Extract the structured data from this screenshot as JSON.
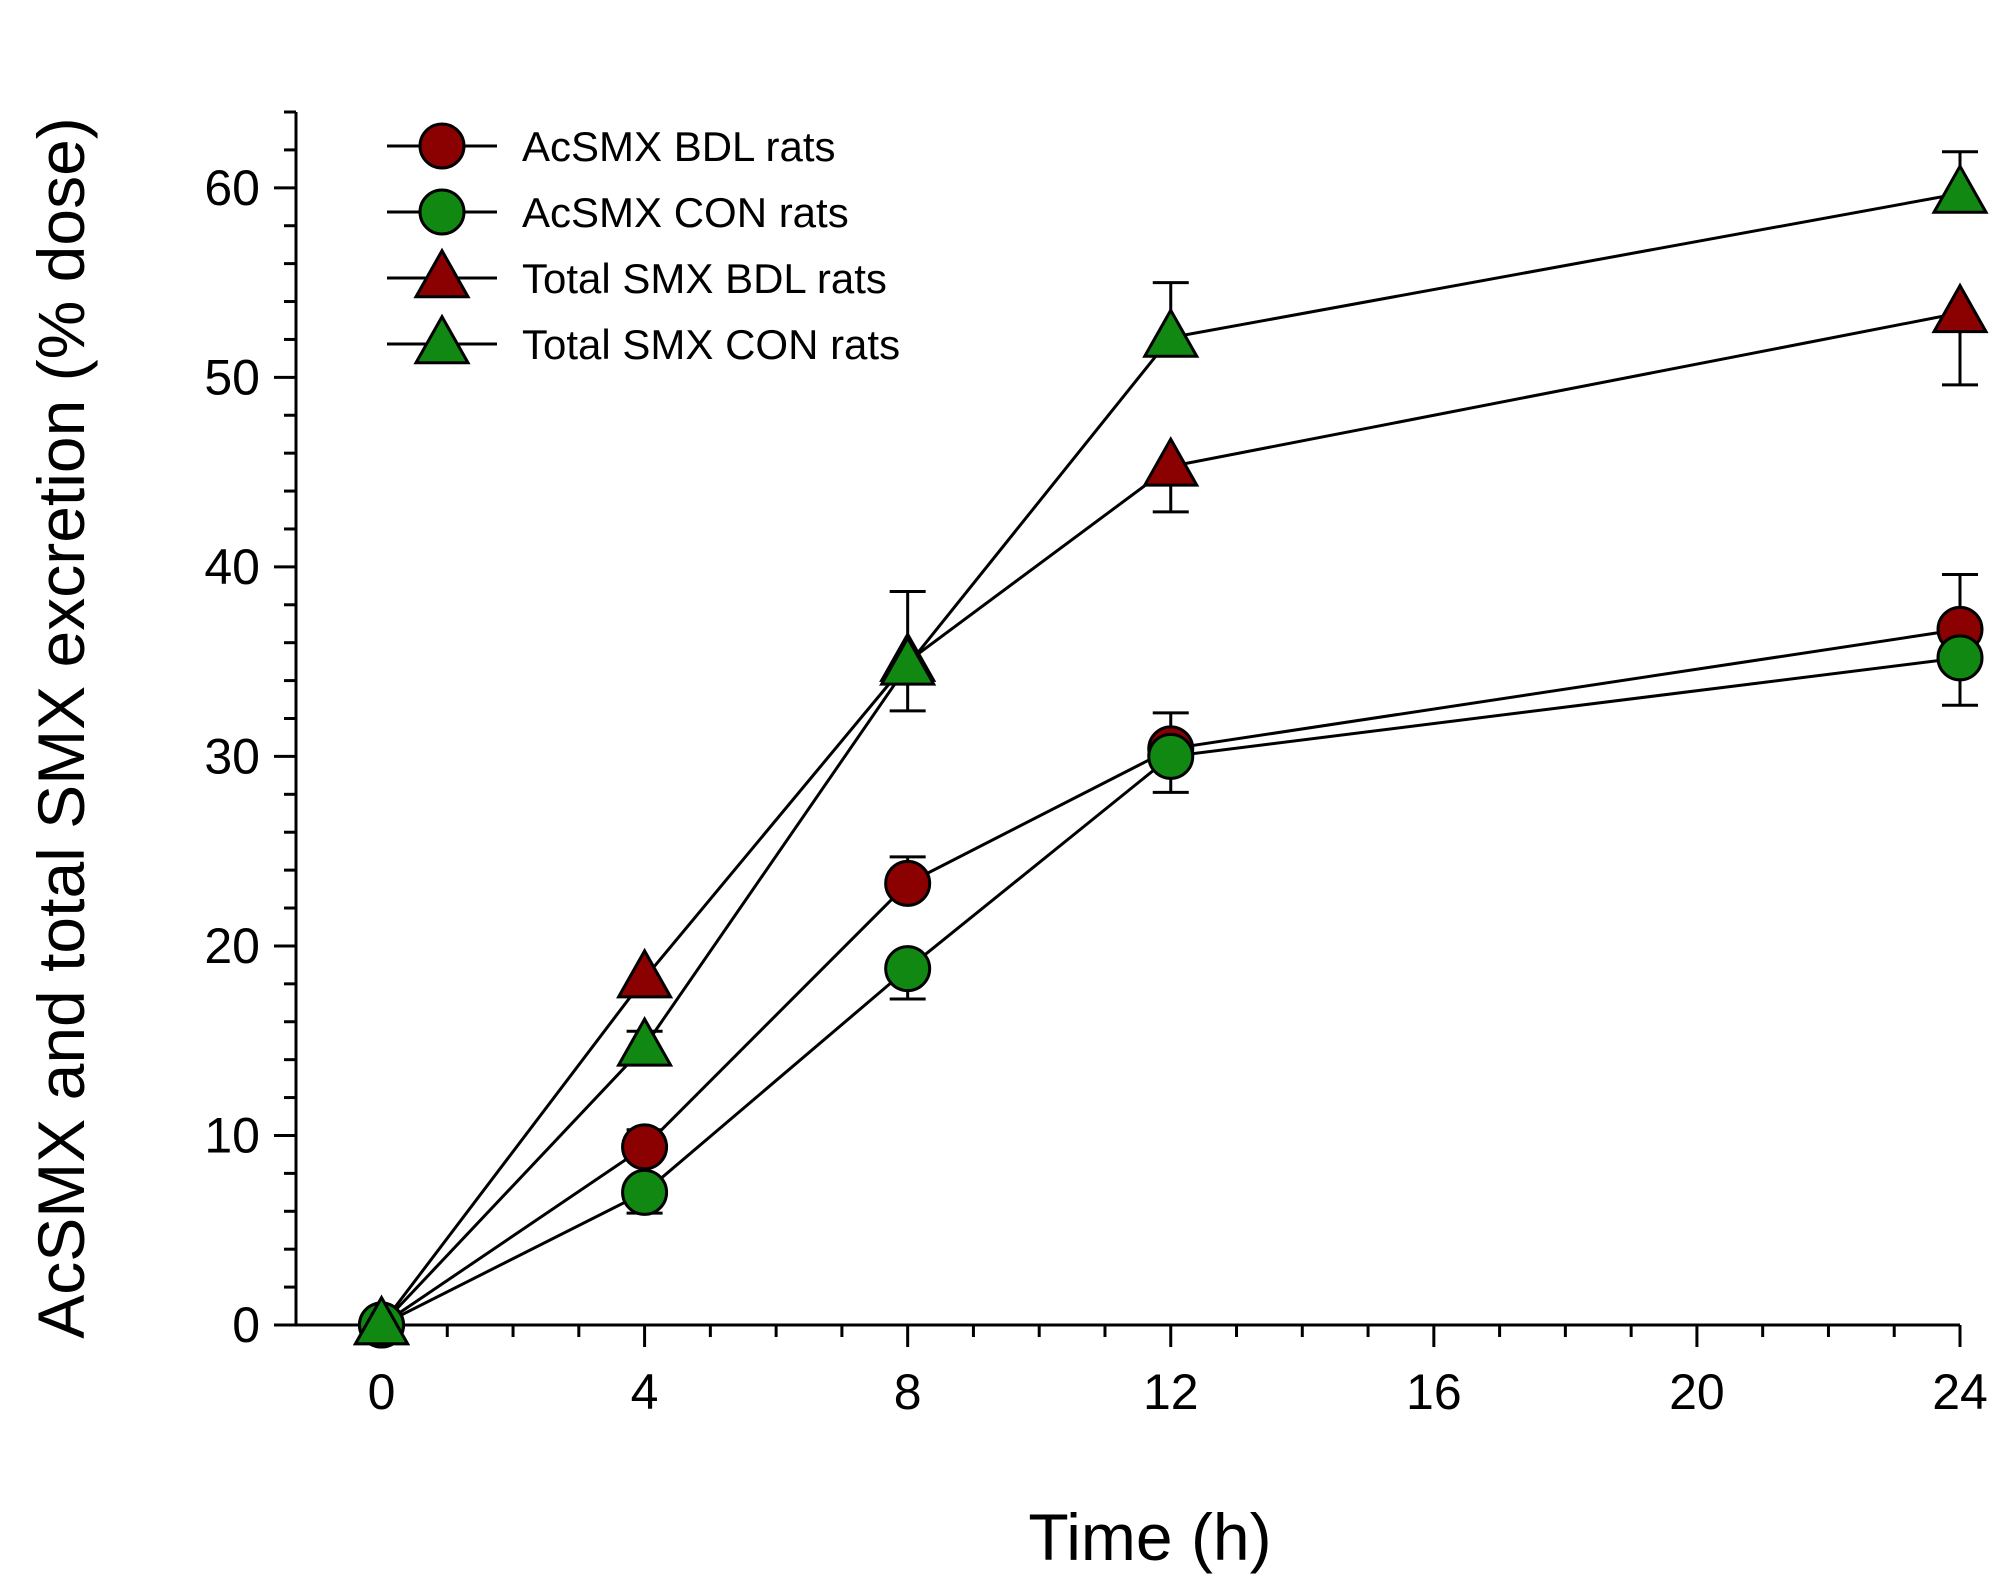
{
  "chart_data": {
    "type": "line",
    "title": "",
    "xlabel": "Time (h)",
    "ylabel": "AcSMX and total SMX excretion (% dose)",
    "xlim": [
      -1.3,
      24
    ],
    "ylim": [
      0,
      64
    ],
    "x_ticks": [
      0,
      4,
      8,
      12,
      16,
      20,
      24
    ],
    "x_tick_labels": [
      "0",
      "4",
      "8",
      "12",
      "16",
      "20",
      "24"
    ],
    "x_minor_step": 1,
    "y_ticks": [
      0,
      10,
      20,
      30,
      40,
      50,
      60
    ],
    "y_tick_labels": [
      "0",
      "10",
      "20",
      "30",
      "40",
      "50",
      "60"
    ],
    "y_minor_step": 2,
    "grid": false,
    "legend_position": "top-left",
    "series": [
      {
        "name": "AcSMX BDL rats",
        "marker": "circle",
        "color": "#8b0000",
        "x": [
          0,
          4,
          8,
          12,
          24
        ],
        "y": [
          0,
          9.4,
          23.3,
          30.4,
          36.7
        ],
        "err": [
          0,
          0.9,
          1.4,
          1.9,
          2.9
        ],
        "err_dir": "up"
      },
      {
        "name": "AcSMX CON rats",
        "marker": "circle",
        "color": "#118811",
        "x": [
          0,
          4,
          8,
          12,
          24
        ],
        "y": [
          0,
          7.0,
          18.8,
          30.0,
          35.2
        ],
        "err": [
          0,
          1.1,
          1.6,
          1.9,
          2.5
        ],
        "err_dir": "down"
      },
      {
        "name": "Total SMX BDL rats",
        "marker": "triangle",
        "color": "#8b0000",
        "x": [
          0,
          4,
          8,
          12,
          24
        ],
        "y": [
          0,
          18.3,
          35.0,
          45.3,
          53.4
        ],
        "err": [
          0,
          0.6,
          2.6,
          2.4,
          3.8
        ],
        "err_dir": "down"
      },
      {
        "name": "Total SMX CON rats",
        "marker": "triangle",
        "color": "#118811",
        "x": [
          0,
          4,
          8,
          12,
          24
        ],
        "y": [
          0,
          14.7,
          34.8,
          52.1,
          59.7
        ],
        "err": [
          0,
          0.8,
          3.9,
          2.9,
          2.2
        ],
        "err_dir": "up"
      }
    ]
  }
}
